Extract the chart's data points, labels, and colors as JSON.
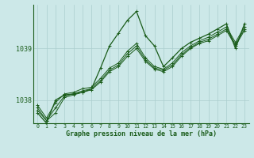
{
  "title": "Graphe pression niveau de la mer (hPa)",
  "bg_color": "#cce8e8",
  "grid_color": "#aacece",
  "line_color": "#1a5c1a",
  "x_labels": [
    "0",
    "1",
    "2",
    "3",
    "4",
    "5",
    "6",
    "7",
    "8",
    "9",
    "10",
    "11",
    "12",
    "13",
    "14",
    "15",
    "16",
    "17",
    "18",
    "19",
    "20",
    "21",
    "22",
    "23"
  ],
  "yticks": [
    1038,
    1039
  ],
  "ylim": [
    1037.55,
    1039.85
  ],
  "xlim": [
    -0.5,
    23.5
  ],
  "series": [
    [
      1037.8,
      1037.6,
      1037.75,
      1038.05,
      1038.1,
      1038.15,
      1038.2,
      1038.35,
      1038.55,
      1038.65,
      1038.85,
      1039.0,
      1038.75,
      1038.6,
      1038.55,
      1038.65,
      1038.85,
      1039.0,
      1039.1,
      1039.15,
      1039.25,
      1039.35,
      1039.05,
      1039.35
    ],
    [
      1037.85,
      1037.6,
      1037.85,
      1038.08,
      1038.12,
      1038.18,
      1038.22,
      1038.38,
      1038.58,
      1038.68,
      1038.9,
      1039.05,
      1038.78,
      1038.62,
      1038.58,
      1038.68,
      1038.88,
      1039.02,
      1039.12,
      1039.18,
      1039.28,
      1039.38,
      1039.08,
      1039.38
    ],
    [
      1037.9,
      1037.65,
      1037.95,
      1038.12,
      1038.15,
      1038.22,
      1038.25,
      1038.42,
      1038.62,
      1038.72,
      1038.95,
      1039.1,
      1038.82,
      1038.65,
      1038.6,
      1038.72,
      1038.92,
      1039.05,
      1039.15,
      1039.22,
      1039.32,
      1039.42,
      1039.12,
      1039.42
    ],
    [
      1037.75,
      1037.55,
      1038.0,
      1038.1,
      1038.12,
      1038.15,
      1038.22,
      1038.62,
      1039.05,
      1039.3,
      1039.55,
      1039.72,
      1039.25,
      1039.05,
      1038.65,
      1038.82,
      1039.0,
      1039.12,
      1039.2,
      1039.28,
      1039.38,
      1039.48,
      1039.0,
      1039.48
    ]
  ]
}
